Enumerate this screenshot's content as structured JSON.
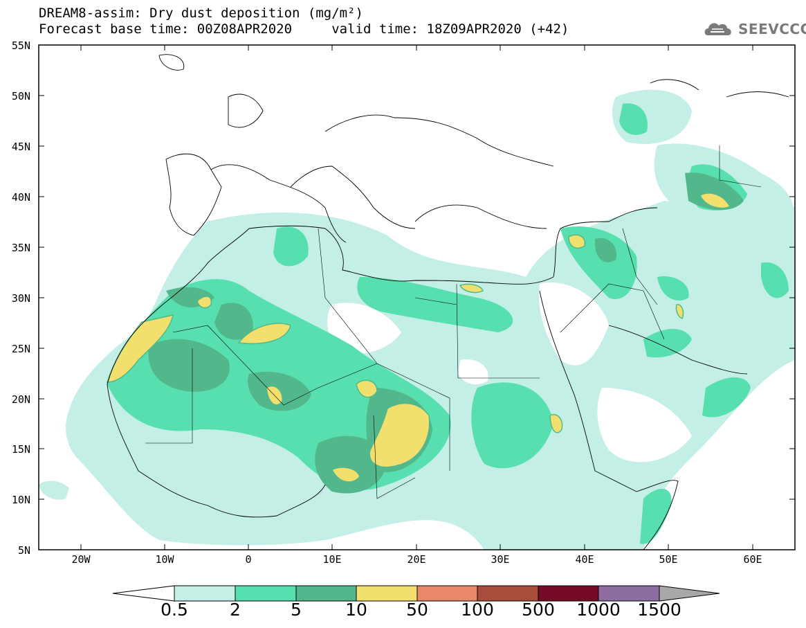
{
  "header": {
    "title_line1": "DREAM8-assim: Dry dust deposition (mg/m²)",
    "title_line2": "Forecast base time: 00Z08APR2020     valid time: 18Z09APR2020 (+42)",
    "logo_text": "SEEVCCC"
  },
  "map": {
    "lat_labels": [
      "55N",
      "50N",
      "45N",
      "40N",
      "35N",
      "30N",
      "25N",
      "20N",
      "15N",
      "10N",
      "5N"
    ],
    "lon_labels": [
      "20W",
      "10W",
      "0",
      "10E",
      "20E",
      "30E",
      "40E",
      "50E",
      "60E"
    ],
    "extent": {
      "lon_min": -25,
      "lon_max": 65,
      "lat_min": 5,
      "lat_max": 55
    }
  },
  "colorbar": {
    "labels": [
      "0.5",
      "2",
      "5",
      "10",
      "50",
      "100",
      "500",
      "1000",
      "1500"
    ],
    "colors": [
      "#c3efe6",
      "#58dfaf",
      "#52b88b",
      "#f1df6e",
      "#e8876a",
      "#aa4c3c",
      "#760b26",
      "#8d6d9f",
      "#a8a8a8"
    ]
  }
}
